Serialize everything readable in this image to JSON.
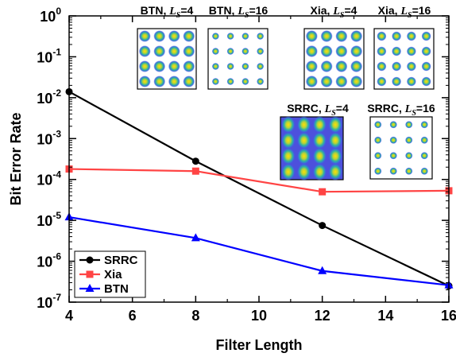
{
  "chart_data": {
    "type": "line",
    "xlabel": "Filter Length",
    "ylabel": "Bit Error Rate",
    "xlim": [
      4,
      16
    ],
    "ylim": [
      1e-07,
      1
    ],
    "yscale": "log",
    "x_ticks": [
      "4",
      "6",
      "8",
      "10",
      "12",
      "14",
      "16"
    ],
    "y_ticks": [
      {
        "base": "10",
        "exp": "0"
      },
      {
        "base": "10",
        "exp": "-1"
      },
      {
        "base": "10",
        "exp": "-2"
      },
      {
        "base": "10",
        "exp": "-3"
      },
      {
        "base": "10",
        "exp": "-4"
      },
      {
        "base": "10",
        "exp": "-5"
      },
      {
        "base": "10",
        "exp": "-6"
      },
      {
        "base": "10",
        "exp": "-7"
      }
    ],
    "legend_position": "bottom-left",
    "series": [
      {
        "name": "SRRC",
        "color": "#000000",
        "marker": "circle",
        "x": [
          4,
          8,
          12,
          16
        ],
        "y": [
          0.014,
          0.00028,
          7.5e-06,
          2.5e-07
        ]
      },
      {
        "name": "Xia",
        "color": "#ff4444",
        "marker": "square",
        "x": [
          4,
          8,
          12,
          16
        ],
        "y": [
          0.00018,
          0.00016,
          5e-05,
          5.3e-05
        ]
      },
      {
        "name": "BTN",
        "color": "#0000ff",
        "marker": "triangle",
        "x": [
          4,
          8,
          12,
          16
        ],
        "y": [
          1.2e-05,
          3.7e-06,
          5.8e-07,
          2.6e-07
        ]
      }
    ],
    "insets": [
      {
        "name": "BTN",
        "sub": "S",
        "value": "4",
        "grid": 4,
        "blob": "large"
      },
      {
        "name": "BTN",
        "sub": "S",
        "value": "16",
        "grid": 4,
        "blob": "small"
      },
      {
        "name": "Xia",
        "sub": "S",
        "value": "4",
        "grid": 4,
        "blob": "large"
      },
      {
        "name": "Xia",
        "sub": "S",
        "value": "16",
        "grid": 4,
        "blob": "medium"
      },
      {
        "name": "SRRC",
        "sub": "S",
        "value": "4",
        "grid": 4,
        "blob": "smeared"
      },
      {
        "name": "SRRC",
        "sub": "S",
        "value": "16",
        "grid": 4,
        "blob": "small"
      }
    ]
  }
}
